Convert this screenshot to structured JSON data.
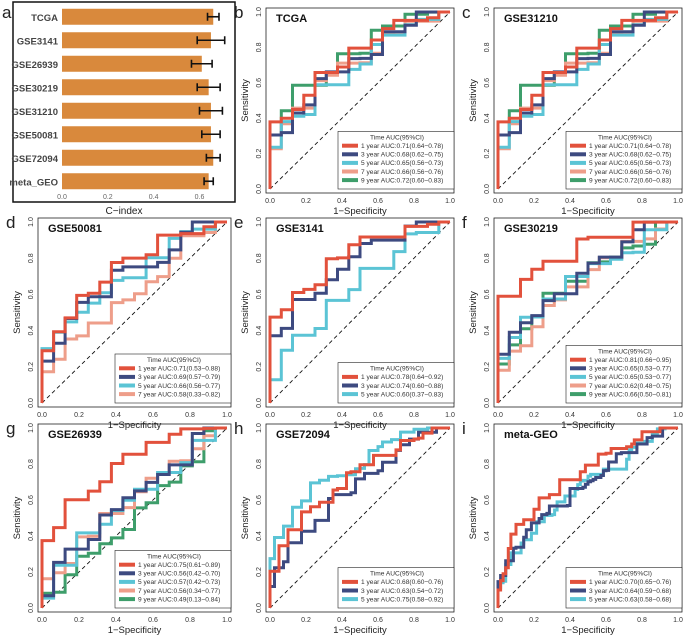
{
  "colors": {
    "red": "#E2513C",
    "navy": "#3D4A80",
    "cyan": "#5BC4D5",
    "salmon": "#EE9E8A",
    "green": "#3E9E6B",
    "bar": "#D9893C"
  },
  "cindex": {
    "letter": "a",
    "categories": [
      "TCGA",
      "GSE3141",
      "GSE26939",
      "GSE30219",
      "GSE31210",
      "GSE50081",
      "GSE72094",
      "meta_GEO"
    ],
    "values": [
      0.66,
      0.65,
      0.61,
      0.64,
      0.65,
      0.65,
      0.66,
      0.64
    ],
    "errors": [
      0.025,
      0.06,
      0.045,
      0.05,
      0.05,
      0.04,
      0.03,
      0.02
    ],
    "ticks": [
      "0.0",
      "0.2",
      "0.4",
      "0.6"
    ],
    "xlabel": "C−index",
    "xlim": [
      0,
      0.72
    ]
  },
  "roc_common": {
    "xlabel": "1−Specificity",
    "ylabel": "Sensitivity",
    "ticks": [
      "0.0",
      "0.2",
      "0.4",
      "0.6",
      "0.8",
      "1.0"
    ],
    "legend_title": "Time AUC(95%CI)"
  },
  "chart_data": [
    {
      "letter": "b",
      "title": "TCGA",
      "type": "line",
      "series": [
        {
          "label": "1 year AUC:0.71(0.64−0.78)",
          "color": "red",
          "auc": 0.71,
          "seed": 11
        },
        {
          "label": "3 year AUC:0.68(0.62−0.75)",
          "color": "navy",
          "auc": 0.68,
          "seed": 12
        },
        {
          "label": "5 year AUC:0.65(0.56−0.73)",
          "color": "cyan",
          "auc": 0.65,
          "seed": 13
        },
        {
          "label": "7 year AUC:0.66(0.56−0.76)",
          "color": "salmon",
          "auc": 0.66,
          "seed": 14
        },
        {
          "label": "9 year AUC:0.72(0.60−0.83)",
          "color": "green",
          "auc": 0.72,
          "seed": 15
        }
      ]
    },
    {
      "letter": "c",
      "title": "GSE31210",
      "type": "line",
      "series": [
        {
          "label": "1 year AUC:0.71(0.64−0.78)",
          "color": "red",
          "auc": 0.71,
          "seed": 11
        },
        {
          "label": "3 year AUC:0.68(0.62−0.75)",
          "color": "navy",
          "auc": 0.68,
          "seed": 12
        },
        {
          "label": "5 year AUC:0.65(0.56−0.73)",
          "color": "cyan",
          "auc": 0.65,
          "seed": 13
        },
        {
          "label": "7 year AUC:0.66(0.56−0.76)",
          "color": "salmon",
          "auc": 0.66,
          "seed": 14
        },
        {
          "label": "9 year AUC:0.72(0.60−0.83)",
          "color": "green",
          "auc": 0.72,
          "seed": 15
        }
      ]
    },
    {
      "letter": "d",
      "title": "GSE50081",
      "type": "line",
      "series": [
        {
          "label": "1 year AUC:0.71(0.53−0.88)",
          "color": "red",
          "auc": 0.71,
          "seed": 21
        },
        {
          "label": "3 year AUC:0.69(0.57−0.79)",
          "color": "navy",
          "auc": 0.69,
          "seed": 22
        },
        {
          "label": "5 year AUC:0.66(0.56−0.77)",
          "color": "cyan",
          "auc": 0.66,
          "seed": 23
        },
        {
          "label": "7 year AUC:0.58(0.33−0.82)",
          "color": "salmon",
          "auc": 0.58,
          "seed": 24
        }
      ]
    },
    {
      "letter": "e",
      "title": "GSE3141",
      "type": "line",
      "series": [
        {
          "label": "1 year AUC:0.78(0.64−0.92)",
          "color": "red",
          "auc": 0.78,
          "seed": 31
        },
        {
          "label": "3 year AUC:0.74(0.60−0.88)",
          "color": "navy",
          "auc": 0.74,
          "seed": 32
        },
        {
          "label": "5 year AUC:0.60(0.37−0.83)",
          "color": "cyan",
          "auc": 0.6,
          "seed": 33
        }
      ]
    },
    {
      "letter": "f",
      "title": "GSE30219",
      "type": "line",
      "series": [
        {
          "label": "1 year AUC:0.81(0.66−0.95)",
          "color": "red",
          "auc": 0.81,
          "seed": 41
        },
        {
          "label": "3 year AUC:0.65(0.53−0.77)",
          "color": "navy",
          "auc": 0.65,
          "seed": 42
        },
        {
          "label": "5 year AUC:0.65(0.53−0.77)",
          "color": "cyan",
          "auc": 0.65,
          "seed": 43
        },
        {
          "label": "7 year AUC:0.62(0.48−0.75)",
          "color": "salmon",
          "auc": 0.62,
          "seed": 44
        },
        {
          "label": "9 year AUC:0.66(0.50−0.81)",
          "color": "green",
          "auc": 0.66,
          "seed": 45
        }
      ]
    },
    {
      "letter": "g",
      "title": "GSE26939",
      "type": "line",
      "series": [
        {
          "label": "1 year AUC:0.75(0.61−0.89)",
          "color": "red",
          "auc": 0.75,
          "seed": 51
        },
        {
          "label": "3 year AUC:0.56(0.42−0.70)",
          "color": "navy",
          "auc": 0.56,
          "seed": 52
        },
        {
          "label": "5 year AUC:0.57(0.42−0.73)",
          "color": "cyan",
          "auc": 0.57,
          "seed": 53
        },
        {
          "label": "7 year AUC:0.56(0.34−0.77)",
          "color": "salmon",
          "auc": 0.56,
          "seed": 54
        },
        {
          "label": "9 year AUC:0.49(0.13−0.84)",
          "color": "green",
          "auc": 0.49,
          "seed": 55
        }
      ]
    },
    {
      "letter": "h",
      "title": "GSE72094",
      "type": "line",
      "series": [
        {
          "label": "1 year AUC:0.68(0.60−0.76)",
          "color": "red",
          "auc": 0.68,
          "seed": 61
        },
        {
          "label": "3 year AUC:0.63(0.54−0.72)",
          "color": "navy",
          "auc": 0.63,
          "seed": 62
        },
        {
          "label": "5 year AUC:0.75(0.58−0.92)",
          "color": "cyan",
          "auc": 0.75,
          "seed": 63
        }
      ]
    },
    {
      "letter": "i",
      "title": "meta-GEO",
      "type": "line",
      "series": [
        {
          "label": "1 year AUC:0.70(0.65−0.76)",
          "color": "red",
          "auc": 0.7,
          "seed": 71
        },
        {
          "label": "3 year AUC:0.64(0.59−0.68)",
          "color": "navy",
          "auc": 0.64,
          "seed": 72
        },
        {
          "label": "5 year AUC:0.63(0.58−0.68)",
          "color": "cyan",
          "auc": 0.63,
          "seed": 73
        }
      ]
    }
  ]
}
